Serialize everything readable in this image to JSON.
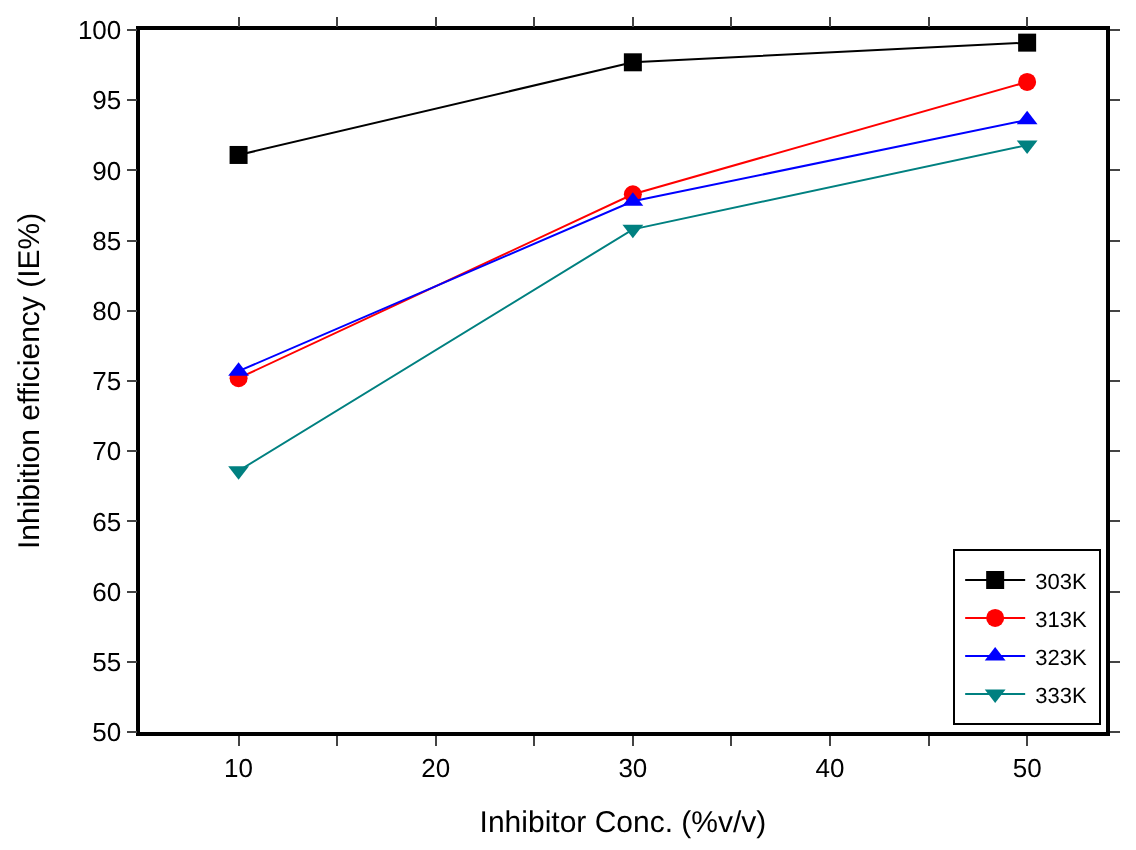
{
  "chart_data": {
    "type": "line",
    "xlabel": "Inhibitor Conc. (%v/v)",
    "ylabel": "Inhibition efficiency (IE%)",
    "x": [
      10,
      30,
      50
    ],
    "series": [
      {
        "name": "303K",
        "color": "#000000",
        "marker": "square",
        "values": [
          91.1,
          97.7,
          99.1
        ]
      },
      {
        "name": "313K",
        "color": "#ff0000",
        "marker": "circle",
        "values": [
          75.2,
          88.3,
          96.3
        ]
      },
      {
        "name": "323K",
        "color": "#0000ff",
        "marker": "triangle",
        "values": [
          75.7,
          87.8,
          93.6
        ]
      },
      {
        "name": "333K",
        "color": "#008080",
        "marker": "triangle-down",
        "values": [
          68.6,
          85.8,
          91.8
        ]
      }
    ],
    "xlim": [
      5,
      54
    ],
    "xticks": [
      10,
      {
        "value": 15,
        "label": null
      },
      20,
      {
        "value": 25,
        "label": null
      },
      30,
      {
        "value": 35,
        "label": null
      },
      40,
      {
        "value": 45,
        "label": null
      },
      50
    ],
    "ylim": [
      50,
      100
    ],
    "yticks": [
      50,
      55,
      60,
      65,
      70,
      75,
      80,
      85,
      90,
      95,
      100
    ],
    "legend": "bottom right",
    "line_style": "solid"
  }
}
